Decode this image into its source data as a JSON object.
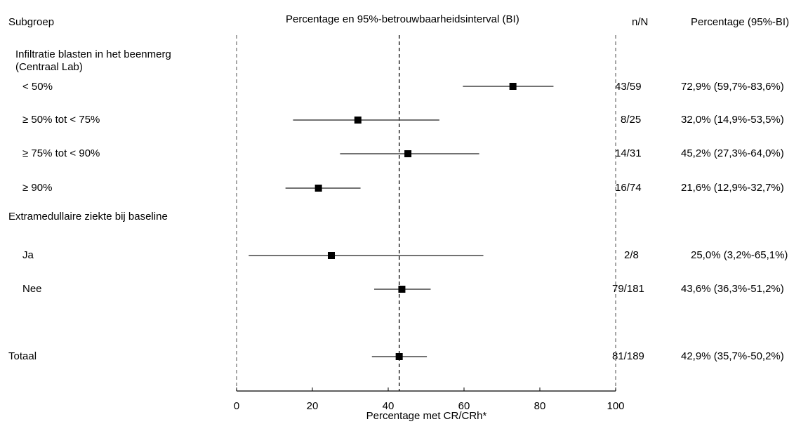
{
  "header": {
    "subgroup": "Subgroep",
    "plot_title": "Percentage en 95%-betrouwbaarheidsinterval (BI)",
    "nN": "n/N",
    "pct_ci": "Percentage (95%-BI)"
  },
  "groups": [
    {
      "label_lines": [
        "Infiltratie blasten in het beenmerg",
        "(Centraal Lab)"
      ]
    },
    {
      "label_lines": [
        "Extramedullaire ziekte bij baseline"
      ]
    }
  ],
  "chart_data": {
    "type": "forest",
    "xlabel": "Percentage met CR/CRh*",
    "xlim": [
      0,
      100
    ],
    "xticks": [
      0,
      20,
      40,
      60,
      80,
      100
    ],
    "reference_line": 42.9,
    "rows": [
      {
        "label": "< 50%",
        "group": 0,
        "n_over_N": "43/59",
        "estimate": 72.9,
        "lower": 59.7,
        "upper": 83.6,
        "ci_text": "72,9% (59,7%-83,6%)"
      },
      {
        "label": "≥ 50% tot < 75%",
        "group": 0,
        "n_over_N": "8/25",
        "estimate": 32.0,
        "lower": 14.9,
        "upper": 53.5,
        "ci_text": "32,0% (14,9%-53,5%)"
      },
      {
        "label": "≥ 75% tot < 90%",
        "group": 0,
        "n_over_N": "14/31",
        "estimate": 45.2,
        "lower": 27.3,
        "upper": 64.0,
        "ci_text": "45,2% (27,3%-64,0%)"
      },
      {
        "label": "≥ 90%",
        "group": 0,
        "n_over_N": "16/74",
        "estimate": 21.6,
        "lower": 12.9,
        "upper": 32.7,
        "ci_text": "21,6% (12,9%-32,7%)"
      },
      {
        "label": "Ja",
        "group": 1,
        "n_over_N": "2/8",
        "estimate": 25.0,
        "lower": 3.2,
        "upper": 65.1,
        "ci_text": "25,0% (3,2%-65,1%)"
      },
      {
        "label": "Nee",
        "group": 1,
        "n_over_N": "79/181",
        "estimate": 43.6,
        "lower": 36.3,
        "upper": 51.2,
        "ci_text": "43,6% (36,3%-51,2%)"
      },
      {
        "label": "Totaal",
        "group": null,
        "n_over_N": "81/189",
        "estimate": 42.9,
        "lower": 35.7,
        "upper": 50.2,
        "ci_text": "42,9% (35,7%-50,2%)"
      }
    ]
  }
}
